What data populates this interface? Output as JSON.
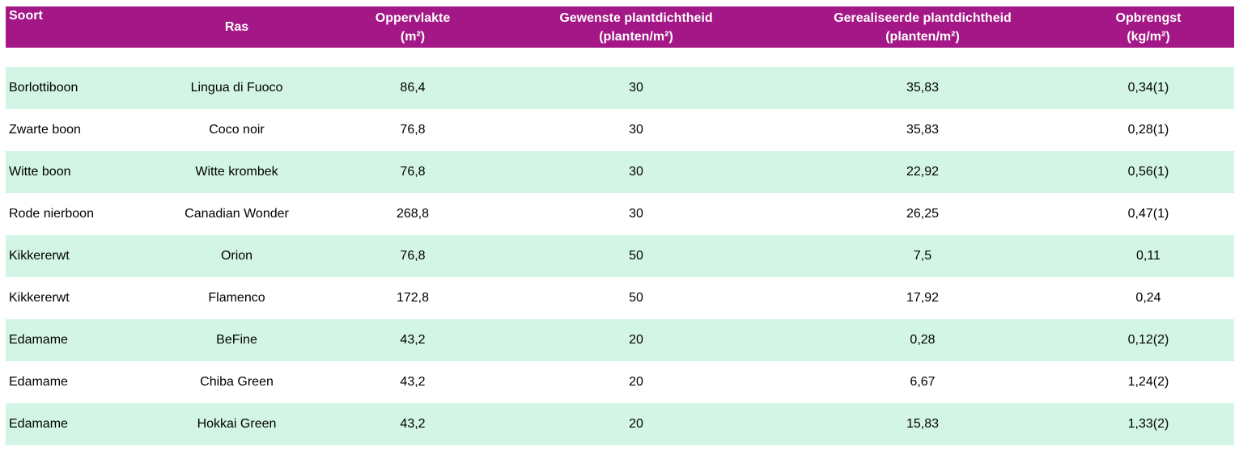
{
  "colors": {
    "header_bg": "#A31786",
    "header_text": "#FFFFFF",
    "row_bg": "#FFFFFF",
    "row_alt_bg": "#D3F5E5",
    "body_text": "#000000"
  },
  "table": {
    "header": {
      "soort": "Soort",
      "ras": "Ras",
      "oppervlakte": "Oppervlakte\n(m²)",
      "gewenste": "Gewenste plantdichtheid\n(planten/m²)",
      "gerealiseerde": "Gerealiseerde plantdichtheid\n(planten/m²)",
      "opbrengst": "Opbrengst\n(kg/m²)"
    }
  },
  "chart_data": {
    "type": "table",
    "columns": [
      "Soort",
      "Ras",
      "Oppervlakte (m²)",
      "Gewenste plantdichtheid (planten/m²)",
      "Gerealiseerde plantdichtheid (planten/m²)",
      "Opbrengst (kg/m²)"
    ],
    "rows": [
      [
        "Borlottiboon",
        "Lingua di Fuoco",
        "86,4",
        "30",
        "35,83",
        "0,34(1)"
      ],
      [
        "Zwarte boon",
        "Coco noir",
        "76,8",
        "30",
        "35,83",
        "0,28(1)"
      ],
      [
        "Witte boon",
        "Witte krombek",
        "76,8",
        "30",
        "22,92",
        "0,56(1)"
      ],
      [
        "Rode nierboon",
        "Canadian Wonder",
        "268,8",
        "30",
        "26,25",
        "0,47(1)"
      ],
      [
        "Kikkererwt",
        "Orion",
        "76,8",
        "50",
        "7,5",
        "0,11"
      ],
      [
        "Kikkererwt",
        "Flamenco",
        "172,8",
        "50",
        "17,92",
        "0,24"
      ],
      [
        "Edamame",
        "BeFine",
        "43,2",
        "20",
        "0,28",
        "0,12(2)"
      ],
      [
        "Edamame",
        "Chiba Green",
        "43,2",
        "20",
        "6,67",
        "1,24(2)"
      ],
      [
        "Edamame",
        "Hokkai Green",
        "43,2",
        "20",
        "15,83",
        "1,33(2)"
      ]
    ]
  }
}
